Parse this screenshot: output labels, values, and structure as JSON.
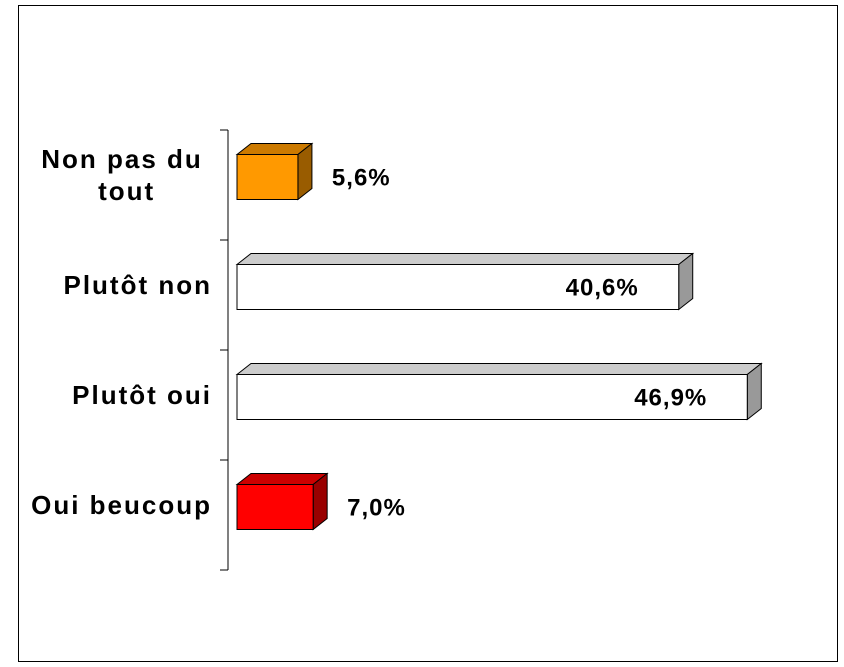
{
  "chart_data": {
    "type": "bar",
    "orientation": "horizontal",
    "categories": [
      "Non pas du tout",
      "Plutôt non",
      "Plutôt oui",
      "Oui beucoup"
    ],
    "values": [
      5.6,
      40.6,
      46.9,
      7.0
    ],
    "value_labels": [
      "5,6%",
      "40,6%",
      "46,9%",
      "7,0%"
    ],
    "colors": [
      "#ff9900",
      "#ffffff",
      "#ffffff",
      "#ff0000"
    ],
    "xlim": [
      0,
      50
    ]
  }
}
